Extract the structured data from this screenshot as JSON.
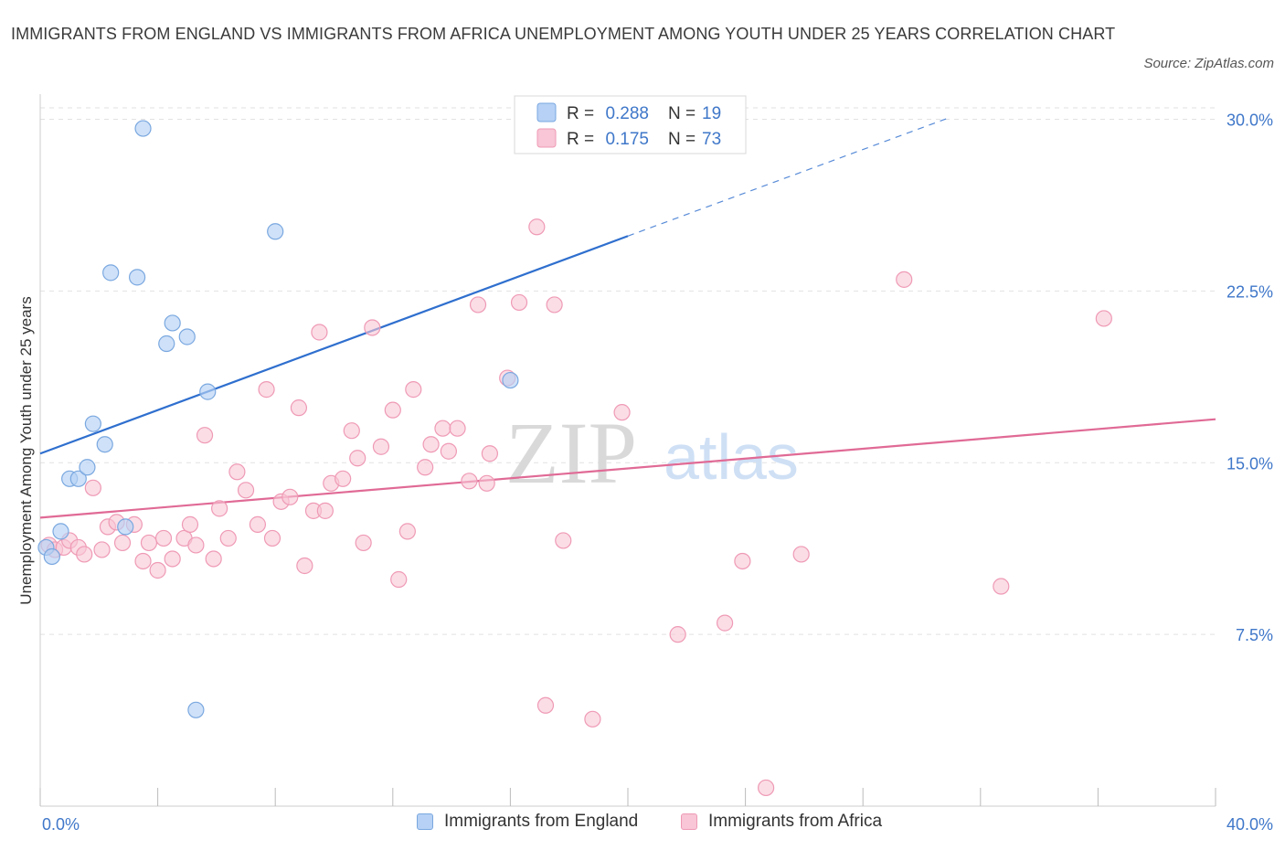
{
  "title": "IMMIGRANTS FROM ENGLAND VS IMMIGRANTS FROM AFRICA UNEMPLOYMENT AMONG YOUTH UNDER 25 YEARS CORRELATION CHART",
  "source": "Source: ZipAtlas.com",
  "watermark": {
    "zip": "ZIP",
    "atlas": "atlas"
  },
  "colors": {
    "england_fill": "#b6d1f5",
    "england_stroke": "#7aa8e0",
    "england_line": "#2f6fce",
    "africa_fill": "#f8c6d6",
    "africa_stroke": "#ef9ab5",
    "africa_line": "#e06a95",
    "axis_label": "#3f77c9",
    "grid": "#e2e2e2"
  },
  "legend_top": [
    {
      "r_label": "R =",
      "r_value": "0.288",
      "n_label": "N =",
      "n_value": "19",
      "series": "england"
    },
    {
      "r_label": "R =",
      "r_value": "0.175",
      "n_label": "N =",
      "n_value": "73",
      "series": "africa"
    }
  ],
  "legend_bottom": [
    {
      "label": "Immigrants from England",
      "series": "england"
    },
    {
      "label": "Immigrants from Africa",
      "series": "africa"
    }
  ],
  "chart_data": {
    "type": "scatter",
    "title": "IMMIGRANTS FROM ENGLAND VS IMMIGRANTS FROM AFRICA UNEMPLOYMENT AMONG YOUTH UNDER 25 YEARS CORRELATION CHART",
    "xlabel": "",
    "ylabel": "Unemployment Among Youth under 25 years",
    "xlim": [
      0,
      40
    ],
    "ylim": [
      0,
      30.5
    ],
    "x_tick_labels": [
      {
        "value": 0,
        "label": "0.0%"
      },
      {
        "value": 40,
        "label": "40.0%"
      }
    ],
    "y_tick_labels": [
      {
        "value": 7.5,
        "label": "7.5%"
      },
      {
        "value": 15,
        "label": "15.0%"
      },
      {
        "value": 22.5,
        "label": "22.5%"
      },
      {
        "value": 30,
        "label": "30.0%"
      }
    ],
    "series": [
      {
        "name": "Immigrants from England",
        "key": "england",
        "points": [
          [
            0.2,
            11.3
          ],
          [
            0.4,
            10.9
          ],
          [
            0.7,
            12.0
          ],
          [
            1.0,
            14.3
          ],
          [
            1.3,
            14.3
          ],
          [
            1.6,
            14.8
          ],
          [
            1.8,
            16.7
          ],
          [
            2.2,
            15.8
          ],
          [
            2.4,
            23.3
          ],
          [
            2.9,
            12.2
          ],
          [
            3.3,
            23.1
          ],
          [
            3.5,
            29.6
          ],
          [
            4.3,
            20.2
          ],
          [
            4.5,
            21.1
          ],
          [
            5.0,
            20.5
          ],
          [
            5.3,
            4.2
          ],
          [
            5.7,
            18.1
          ],
          [
            8.0,
            25.1
          ],
          [
            16.0,
            18.6
          ]
        ],
        "trend": {
          "x0": 0,
          "y0": 15.4,
          "x1": 20,
          "y1": 24.9,
          "dashed_to_x": 31,
          "dashed_to_y": 30.1
        }
      },
      {
        "name": "Immigrants from Africa",
        "key": "africa",
        "points": [
          [
            0.3,
            11.4
          ],
          [
            0.5,
            11.2
          ],
          [
            0.8,
            11.3
          ],
          [
            1.0,
            11.6
          ],
          [
            1.3,
            11.3
          ],
          [
            1.5,
            11.0
          ],
          [
            1.8,
            13.9
          ],
          [
            2.1,
            11.2
          ],
          [
            2.3,
            12.2
          ],
          [
            2.6,
            12.4
          ],
          [
            2.8,
            11.5
          ],
          [
            3.2,
            12.3
          ],
          [
            3.5,
            10.7
          ],
          [
            3.7,
            11.5
          ],
          [
            4.0,
            10.3
          ],
          [
            4.2,
            11.7
          ],
          [
            4.5,
            10.8
          ],
          [
            4.9,
            11.7
          ],
          [
            5.1,
            12.3
          ],
          [
            5.3,
            11.4
          ],
          [
            5.6,
            16.2
          ],
          [
            5.9,
            10.8
          ],
          [
            6.1,
            13.0
          ],
          [
            6.4,
            11.7
          ],
          [
            6.7,
            14.6
          ],
          [
            7.0,
            13.8
          ],
          [
            7.4,
            12.3
          ],
          [
            7.7,
            18.2
          ],
          [
            7.9,
            11.7
          ],
          [
            8.2,
            13.3
          ],
          [
            8.5,
            13.5
          ],
          [
            8.8,
            17.4
          ],
          [
            9.0,
            10.5
          ],
          [
            9.3,
            12.9
          ],
          [
            9.5,
            20.7
          ],
          [
            9.7,
            12.9
          ],
          [
            9.9,
            14.1
          ],
          [
            10.3,
            14.3
          ],
          [
            10.6,
            16.4
          ],
          [
            10.8,
            15.2
          ],
          [
            11.0,
            11.5
          ],
          [
            11.3,
            20.9
          ],
          [
            11.6,
            15.7
          ],
          [
            12.0,
            17.3
          ],
          [
            12.2,
            9.9
          ],
          [
            12.5,
            12.0
          ],
          [
            12.7,
            18.2
          ],
          [
            13.1,
            14.8
          ],
          [
            13.3,
            15.8
          ],
          [
            13.7,
            16.5
          ],
          [
            13.9,
            15.5
          ],
          [
            14.2,
            16.5
          ],
          [
            14.6,
            14.2
          ],
          [
            15.2,
            14.1
          ],
          [
            15.3,
            15.4
          ],
          [
            15.9,
            18.7
          ],
          [
            16.3,
            22.0
          ],
          [
            16.6,
            29.3
          ],
          [
            16.9,
            25.3
          ],
          [
            17.2,
            4.4
          ],
          [
            17.5,
            21.9
          ],
          [
            17.8,
            11.6
          ],
          [
            18.8,
            3.8
          ],
          [
            14.9,
            21.9
          ],
          [
            19.8,
            17.2
          ],
          [
            21.7,
            7.5
          ],
          [
            23.3,
            8.0
          ],
          [
            23.9,
            10.7
          ],
          [
            24.7,
            0.8
          ],
          [
            25.9,
            11.0
          ],
          [
            29.4,
            23.0
          ],
          [
            32.7,
            9.6
          ],
          [
            36.2,
            21.3
          ]
        ],
        "trend": {
          "x0": 0,
          "y0": 12.6,
          "x1": 40,
          "y1": 16.9
        }
      }
    ]
  }
}
